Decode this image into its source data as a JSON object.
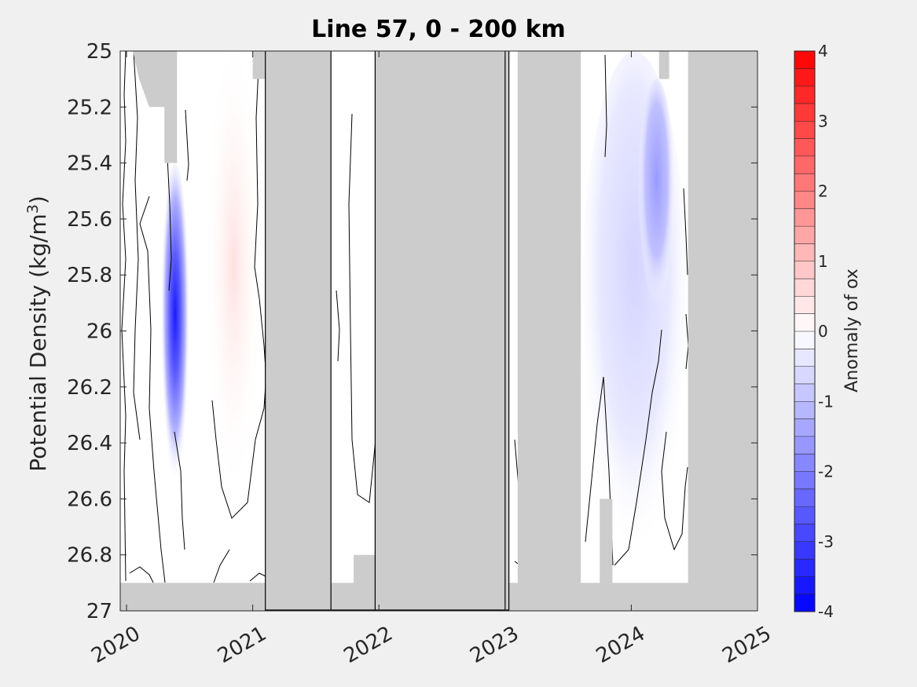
{
  "chart_data": {
    "type": "heatmap",
    "title": "Line 57, 0 - 200 km",
    "ylabel_main": "Potential Density (kg/m",
    "ylabel_sup": "3",
    "ylabel_close": ")",
    "xlim": [
      2019.95,
      2025.0
    ],
    "ylim": [
      25.0,
      27.0
    ],
    "y_reversed": true,
    "xticks": [
      2020,
      2021,
      2022,
      2023,
      2024,
      2025
    ],
    "xtick_labels": [
      "2020",
      "2021",
      "2022",
      "2023",
      "2024",
      "2025"
    ],
    "yticks": [
      25,
      25.2,
      25.4,
      25.6,
      25.8,
      26,
      26.2,
      26.4,
      26.6,
      26.8,
      27
    ],
    "ytick_labels": [
      "25",
      "25.2",
      "25.4",
      "25.6",
      "25.8",
      "26",
      "26.2",
      "26.4",
      "26.6",
      "26.8",
      "27"
    ],
    "colorbar": {
      "label": "Anomaly of ox",
      "range": [
        -4,
        4
      ],
      "ticks": [
        4,
        3,
        2,
        1,
        0,
        -1,
        -2,
        -3,
        -4
      ],
      "tick_labels": [
        "4",
        "3",
        "2",
        "1",
        "0",
        "-1",
        "-2",
        "-3",
        "-4"
      ],
      "levels": 32,
      "low_color": "#0000ff",
      "mid_color": "#ffffff",
      "high_color": "#ff0000"
    },
    "missing_color": "#cccccc",
    "no_data_periods": [
      [
        2021.1,
        2021.62
      ],
      [
        2021.97,
        2023.03
      ],
      [
        2023.1,
        2023.6
      ],
      [
        2024.45,
        2025.0
      ]
    ],
    "anomaly_features": [
      {
        "x_start": 2020.27,
        "x_end": 2020.5,
        "y_top": 25.4,
        "y_bottom": 26.6,
        "peak": -3.5
      },
      {
        "x_start": 2020.62,
        "x_end": 2021.08,
        "y_top": 25.0,
        "y_bottom": 26.7,
        "peak": 0.3
      },
      {
        "x_start": 2023.6,
        "x_end": 2024.45,
        "y_top": 25.0,
        "y_bottom": 26.9,
        "peak": -0.8
      },
      {
        "x_start": 2024.05,
        "x_end": 2024.35,
        "y_top": 25.1,
        "y_bottom": 26.0,
        "peak": -1.3
      }
    ]
  }
}
